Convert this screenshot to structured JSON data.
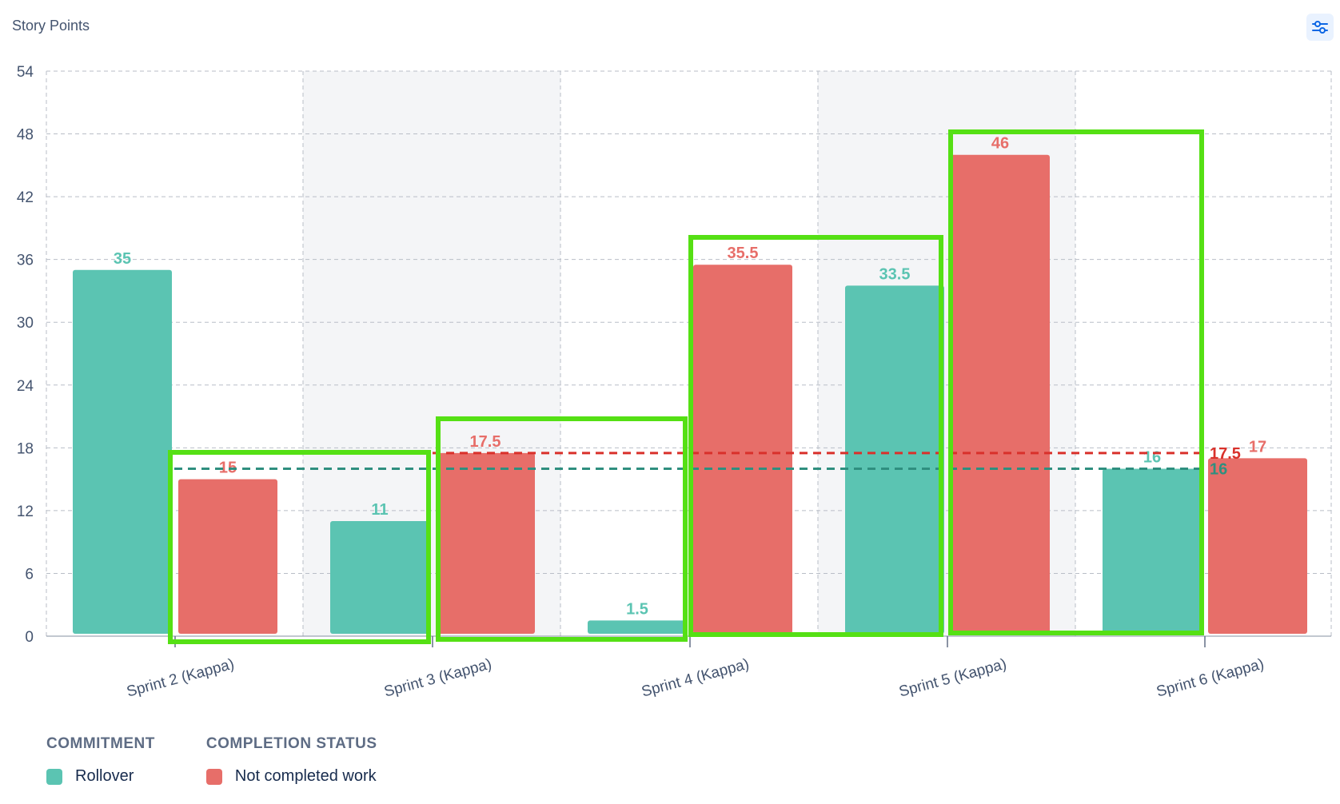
{
  "header": {
    "y_axis_label": "Story Points",
    "settings_icon": "sliders-icon"
  },
  "colors": {
    "rollover": "#5bc4b2",
    "not_completed": "#e76e69",
    "rollover_avg": "#2f8f7f",
    "not_completed_avg": "#d9312b",
    "highlight": "#55e014",
    "band": "#f4f5f7",
    "grid": "#b9bec7"
  },
  "legend": {
    "groups": [
      {
        "title": "COMMITMENT",
        "entries": [
          {
            "label": "Rollover",
            "color": "#5bc4b2"
          }
        ]
      },
      {
        "title": "COMPLETION STATUS",
        "entries": [
          {
            "label": "Not completed work",
            "color": "#e76e69"
          }
        ]
      }
    ]
  },
  "chart_data": {
    "type": "bar",
    "categories": [
      "Sprint 2 (Kappa)",
      "Sprint 3 (Kappa)",
      "Sprint 4 (Kappa)",
      "Sprint 5 (Kappa)",
      "Sprint 6 (Kappa)"
    ],
    "series": [
      {
        "name": "Rollover",
        "values": [
          35,
          11,
          1.5,
          33.5,
          16
        ]
      },
      {
        "name": "Not completed work",
        "values": [
          15,
          17.5,
          35.5,
          46,
          17
        ]
      }
    ],
    "averages": [
      {
        "series": "Rollover",
        "value": 16,
        "label": "16"
      },
      {
        "series": "Not completed work",
        "value": 17.5,
        "label": "17.5"
      }
    ],
    "ylabel": "Story Points",
    "ylim": [
      0,
      54
    ],
    "yticks": [
      0,
      6,
      12,
      18,
      24,
      30,
      36,
      42,
      48,
      54
    ],
    "grid": true,
    "legend_position": "bottom-left"
  }
}
